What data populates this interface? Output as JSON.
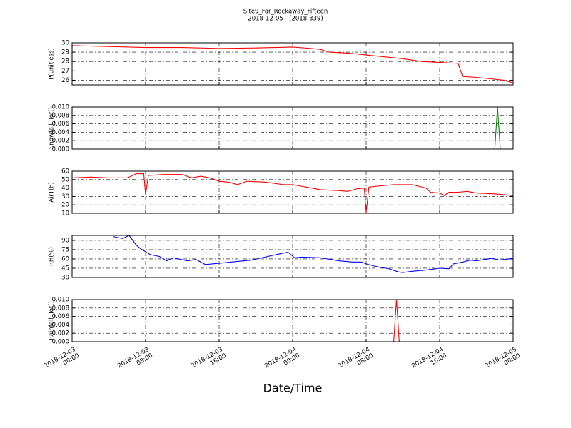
{
  "chart_data": [
    {
      "type": "line",
      "title": "Site9_Far_Rockaway_Fifteen",
      "subtitle": "2018-12-05 - (2018-339)",
      "ylabel": "P(unitless)",
      "color": "#ff0000",
      "grid": true,
      "x": [
        "2018-12-03 00:00",
        "2018-12-03 04:00",
        "2018-12-03 08:00",
        "2018-12-03 12:00",
        "2018-12-03 16:00",
        "2018-12-03 20:00",
        "2018-12-04 00:00",
        "2018-12-04 02:00",
        "2018-12-04 03:00",
        "2018-12-04 04:00",
        "2018-12-04 06:00",
        "2018-12-04 08:00",
        "2018-12-04 10:00",
        "2018-12-04 12:00",
        "2018-12-04 14:00",
        "2018-12-04 16:00",
        "2018-12-04 18:00",
        "2018-12-04 18:30",
        "2018-12-04 20:00",
        "2018-12-04 22:00",
        "2018-12-04 23:00",
        "2018-12-05 00:00"
      ],
      "values": [
        29.7,
        29.6,
        29.5,
        29.5,
        29.4,
        29.45,
        29.55,
        29.4,
        29.3,
        29.0,
        28.9,
        28.7,
        28.5,
        28.3,
        28.0,
        27.9,
        27.8,
        26.4,
        26.3,
        26.1,
        26.0,
        25.7
      ],
      "ylim": [
        25.5,
        30
      ],
      "yticks": [
        26,
        27,
        28,
        29,
        30
      ]
    },
    {
      "type": "line",
      "ylabel": "Snowfall_Tot()",
      "color": "#007f00",
      "grid": true,
      "x": [
        "2018-12-03 00:00",
        "2018-12-04 22:00",
        "2018-12-04 22:18",
        "2018-12-04 22:36",
        "2018-12-05 00:00"
      ],
      "values": [
        0,
        0,
        0.01,
        0,
        0
      ],
      "ylim": [
        0,
        0.01
      ],
      "yticks": [
        {
          "value": 0,
          "label": "0.000"
        },
        {
          "value": 0.002,
          "label": "0.002"
        },
        {
          "value": 0.004,
          "label": "0.004"
        },
        {
          "value": 0.006,
          "label": "0.006"
        },
        {
          "value": 0.008,
          "label": "0.008"
        },
        {
          "value": 0.01,
          "label": "0.010"
        }
      ]
    },
    {
      "type": "line",
      "ylabel": "AirT(F)",
      "color": "#ff0000",
      "grid": true,
      "x": [
        "2018-12-03 00:00",
        "2018-12-03 02:00",
        "2018-12-03 04:00",
        "2018-12-03 06:00",
        "2018-12-03 07:00",
        "2018-12-03 07:48",
        "2018-12-03 08:00",
        "2018-12-03 08:18",
        "2018-12-03 10:00",
        "2018-12-03 12:00",
        "2018-12-03 13:00",
        "2018-12-03 14:00",
        "2018-12-03 15:00",
        "2018-12-03 16:00",
        "2018-12-03 17:00",
        "2018-12-03 18:00",
        "2018-12-03 19:00",
        "2018-12-03 21:00",
        "2018-12-03 23:00",
        "2018-12-04 00:00",
        "2018-12-04 01:00",
        "2018-12-04 03:00",
        "2018-12-04 05:00",
        "2018-12-04 06:00",
        "2018-12-04 07:00",
        "2018-12-04 07:48",
        "2018-12-04 08:00",
        "2018-12-04 08:18",
        "2018-12-04 09:00",
        "2018-12-04 11:00",
        "2018-12-04 13:00",
        "2018-12-04 14:30",
        "2018-12-04 15:00",
        "2018-12-04 16:00",
        "2018-12-04 16:30",
        "2018-12-04 17:00",
        "2018-12-04 18:00",
        "2018-12-04 19:00",
        "2018-12-04 20:00",
        "2018-12-04 22:00",
        "2018-12-05 00:00"
      ],
      "values": [
        52,
        53,
        52,
        52,
        57,
        57,
        32,
        55,
        56,
        56,
        52,
        54,
        52,
        48,
        47,
        44,
        48,
        47,
        44,
        44,
        42,
        38,
        37,
        36,
        39,
        40,
        11,
        41,
        42,
        44,
        44,
        40,
        35,
        34,
        31,
        35,
        35,
        36,
        34,
        33,
        31
      ],
      "ylim": [
        10,
        60
      ],
      "yticks": [
        10,
        20,
        30,
        40,
        50,
        60
      ]
    },
    {
      "type": "line",
      "ylabel": "RH(%)",
      "color": "#0000ff",
      "grid": true,
      "x": [
        "2018-12-03 04:30",
        "2018-12-03 05:30",
        "2018-12-03 06:12",
        "2018-12-03 07:00",
        "2018-12-03 07:30",
        "2018-12-03 08:30",
        "2018-12-03 09:30",
        "2018-12-03 10:18",
        "2018-12-03 11:00",
        "2018-12-03 12:30",
        "2018-12-03 13:30",
        "2018-12-03 14:30",
        "2018-12-03 16:00",
        "2018-12-03 18:00",
        "2018-12-03 19:30",
        "2018-12-03 21:00",
        "2018-12-03 22:30",
        "2018-12-03 23:30",
        "2018-12-04 00:12",
        "2018-12-04 01:00",
        "2018-12-04 03:00",
        "2018-12-04 05:00",
        "2018-12-04 06:30",
        "2018-12-04 07:30",
        "2018-12-04 08:00",
        "2018-12-04 09:00",
        "2018-12-04 10:30",
        "2018-12-04 11:30",
        "2018-12-04 12:00",
        "2018-12-04 13:00",
        "2018-12-04 14:30",
        "2018-12-04 16:00",
        "2018-12-04 17:00",
        "2018-12-04 17:30",
        "2018-12-04 18:30",
        "2018-12-04 19:18",
        "2018-12-04 20:00",
        "2018-12-04 21:42",
        "2018-12-04 22:30",
        "2018-12-05 00:00"
      ],
      "values": [
        96,
        93,
        98,
        82,
        76,
        67,
        64,
        57,
        62,
        57,
        59,
        51,
        53,
        56,
        58,
        63,
        68,
        71,
        62,
        63,
        62,
        57,
        55,
        55,
        52,
        48,
        44,
        39,
        38,
        40,
        42,
        45,
        44,
        52,
        55,
        58,
        57,
        61,
        58,
        61
      ],
      "ylim": [
        30,
        98
      ],
      "yticks": [
        30,
        45,
        60,
        75,
        90
      ]
    },
    {
      "type": "line",
      "ylabel": "Rainfall_Tot()",
      "xlabel": "Date/Time",
      "color": "#ff0000",
      "grid": true,
      "x": [
        "2018-12-03 00:00",
        "2018-12-04 11:00",
        "2018-12-04 11:18",
        "2018-12-04 11:36",
        "2018-12-05 00:00"
      ],
      "values": [
        0,
        0,
        0.01,
        0,
        0
      ],
      "ylim": [
        0,
        0.01
      ],
      "yticks": [
        {
          "value": 0,
          "label": "0.000"
        },
        {
          "value": 0.002,
          "label": "0.002"
        },
        {
          "value": 0.004,
          "label": "0.004"
        },
        {
          "value": 0.006,
          "label": "0.006"
        },
        {
          "value": 0.008,
          "label": "0.008"
        },
        {
          "value": 0.01,
          "label": "0.010"
        }
      ],
      "xlim": [
        "2018-12-03 00:00",
        "2018-12-05 00:00"
      ],
      "xticks": [
        {
          "value": "2018-12-03 00:00",
          "label": "2018-12-03\n00:00"
        },
        {
          "value": "2018-12-03 08:00",
          "label": "2018-12-03\n08:00"
        },
        {
          "value": "2018-12-03 16:00",
          "label": "2018-12-03\n16:00"
        },
        {
          "value": "2018-12-04 00:00",
          "label": "2018-12-04\n00:00"
        },
        {
          "value": "2018-12-04 08:00",
          "label": "2018-12-04\n08:00"
        },
        {
          "value": "2018-12-04 16:00",
          "label": "2018-12-04\n16:00"
        },
        {
          "value": "2018-12-05 00:00",
          "label": "2018-12-05\n00:00"
        }
      ]
    }
  ]
}
